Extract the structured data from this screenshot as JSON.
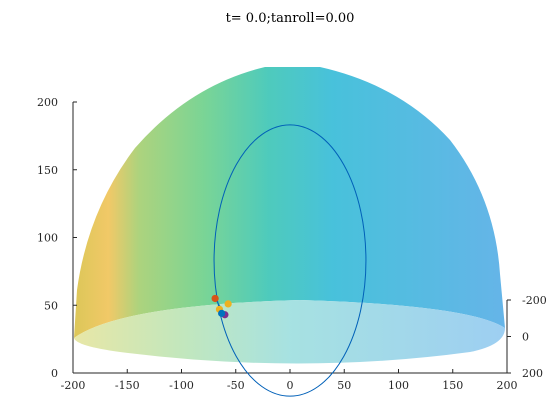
{
  "chart_data": {
    "type": "3d-surface",
    "title": "t= 0.0;tanroll=0.00",
    "xlabel": "",
    "ylabel": "",
    "zlabel": "",
    "x_axis": {
      "range": [
        -200,
        200
      ],
      "ticks": [
        "-200",
        "-150",
        "-100",
        "-50",
        "0",
        "50",
        "100",
        "150",
        "200"
      ]
    },
    "z_axis": {
      "range": [
        0,
        200
      ],
      "ticks": [
        "0",
        "50",
        "100",
        "150",
        "200"
      ]
    },
    "y_axis": {
      "range": [
        -200,
        200
      ],
      "ticks": [
        "-200",
        "0",
        "200"
      ]
    },
    "surface": {
      "shape": "hemisphere",
      "radius": 200,
      "colormap": "parula"
    },
    "ellipse": {
      "center_x": 0,
      "center_z": 83,
      "semi_x": 70,
      "semi_z": 70,
      "color": "#0060b8"
    },
    "markers": [
      {
        "x": -69,
        "z": 55,
        "color": "#d95319"
      },
      {
        "x": -57,
        "z": 51,
        "color": "#edb120"
      },
      {
        "x": -65,
        "z": 47,
        "color": "#edb120"
      },
      {
        "x": -60,
        "z": 43,
        "color": "#7e2f8e"
      },
      {
        "x": -63,
        "z": 44,
        "color": "#0072bd"
      }
    ],
    "grid": false,
    "legend": "none"
  }
}
